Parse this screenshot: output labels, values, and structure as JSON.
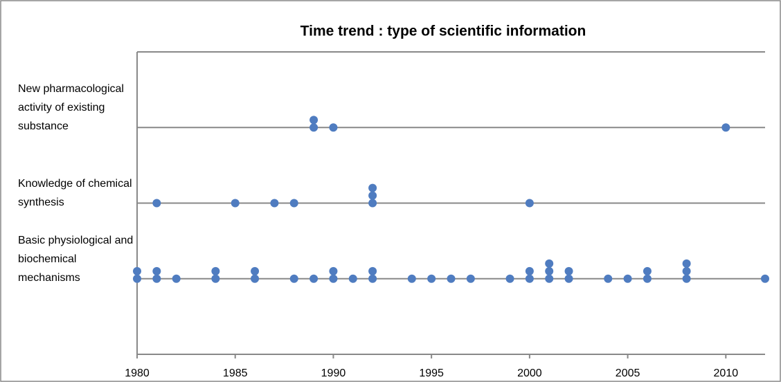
{
  "chart_data": {
    "type": "scatter",
    "title": "Time trend : type of scientific information",
    "series": [
      {
        "color": "#4f7cc0",
        "x": [
          1980,
          1980,
          1981,
          1981,
          1982,
          1984,
          1984,
          1986,
          1986,
          1988,
          1989,
          1990,
          1990,
          1991,
          1992,
          1992,
          1994,
          1995,
          1996,
          1997,
          1999,
          2000,
          2000,
          2001,
          2001,
          2001,
          2002,
          2002,
          2004,
          2005,
          2006,
          2006,
          2008,
          2008,
          2008,
          2012,
          1981,
          1985,
          1987,
          1988,
          1992,
          1992,
          1992,
          2000,
          1989,
          1989,
          1990,
          2010
        ],
        "y": [
          1,
          1.1,
          1,
          1.1,
          1,
          1,
          1.1,
          1,
          1.1,
          1,
          1,
          1,
          1.1,
          1,
          1,
          1.1,
          1,
          1,
          1,
          1,
          1,
          1,
          1.1,
          1,
          1.1,
          1.2,
          1,
          1.1,
          1,
          1,
          1,
          1.1,
          1,
          1.1,
          1.2,
          1,
          2,
          2,
          2,
          2,
          2,
          2.1,
          2.2,
          2,
          3,
          3.1,
          3,
          3
        ]
      }
    ],
    "xlim": [
      1980,
      2012
    ],
    "xticks": [
      1980,
      1985,
      1990,
      1995,
      2000,
      2005,
      2010
    ],
    "ylim": [
      0,
      4
    ],
    "yticks": [
      {
        "value": 1,
        "label": "Basic physiological and biochemical mechanisms"
      },
      {
        "value": 2,
        "label": "Knowledge of chemical synthesis"
      },
      {
        "value": 3,
        "label": "New pharmacological activity of existing substance"
      }
    ],
    "grid": true
  }
}
